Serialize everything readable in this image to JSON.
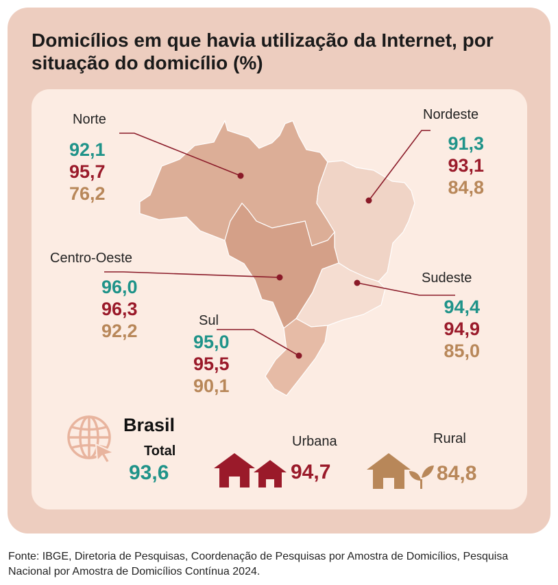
{
  "chart_data": {
    "type": "map",
    "title": "Domicílios em que havia utilização da Internet, por situação do domicílio (%)",
    "regions": [
      {
        "name": "Norte",
        "total": "92,1",
        "urbana": "95,7",
        "rural": "76,2"
      },
      {
        "name": "Nordeste",
        "total": "91,3",
        "urbana": "93,1",
        "rural": "84,8"
      },
      {
        "name": "Centro-Oeste",
        "total": "96,0",
        "urbana": "96,3",
        "rural": "92,2"
      },
      {
        "name": "Sudeste",
        "total": "94,4",
        "urbana": "94,9",
        "rural": "85,0"
      },
      {
        "name": "Sul",
        "total": "95,0",
        "urbana": "95,5",
        "rural": "90,1"
      }
    ],
    "brasil": {
      "label": "Brasil",
      "total_label": "Total",
      "total": "93,6",
      "urbana_label": "Urbana",
      "urbana": "94,7",
      "rural_label": "Rural",
      "rural": "84,8"
    },
    "colors": {
      "total": "#1f9389",
      "urbana": "#9a1a2a",
      "rural": "#b88759",
      "norte_fill": "#dcae97",
      "nordeste_fill": "#f0d4c6",
      "centro_oeste_fill": "#d4a088",
      "sudeste_fill": "#f5ddd1",
      "sul_fill": "#e6bba6",
      "leader_line": "#8a1a28"
    }
  },
  "source": "Fonte: IBGE, Diretoria de Pesquisas, Coordenação de Pesquisas por Amostra de Domicílios, Pesquisa Nacional por Amostra de Domicílios Contínua 2024.",
  "icons": [
    "globe-cursor-icon",
    "urban-houses-icon",
    "rural-house-plant-icon"
  ]
}
